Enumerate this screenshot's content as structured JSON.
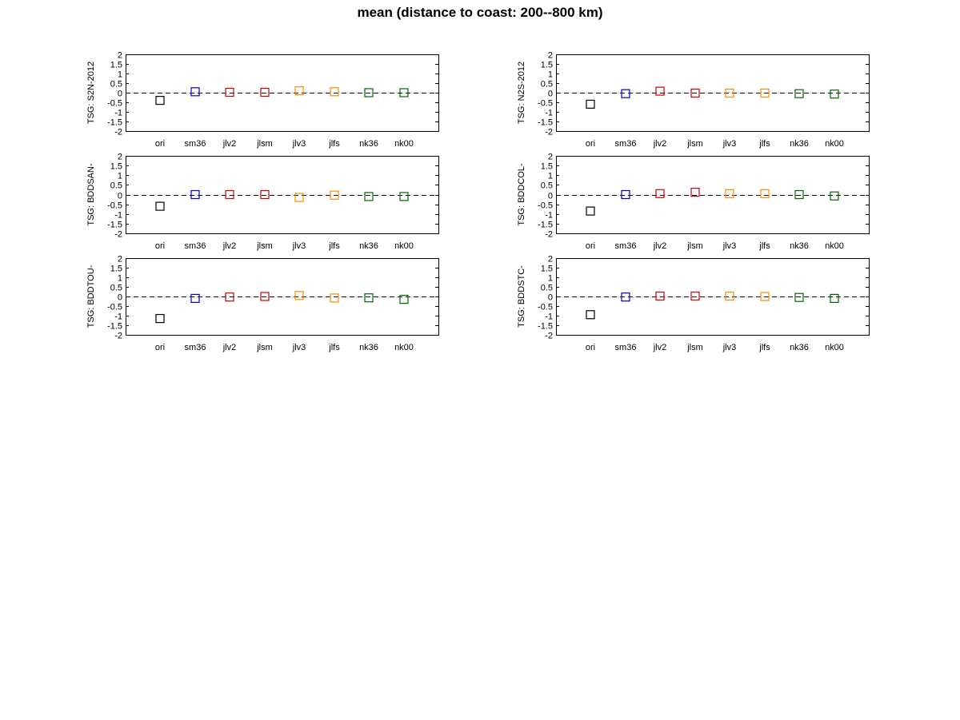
{
  "figure": {
    "title": "mean (distance to coast: 200--800 km)"
  },
  "colors": {
    "ori": "#000000",
    "sm36": "#0000cc",
    "jlv2": "#cc0000",
    "jlsm": "#cc0000",
    "jlv3": "#ff8800",
    "jlfs": "#ff8800",
    "nk36": "#006600",
    "nk00": "#006600",
    "zero_line": "#000000"
  },
  "chart_data": [
    {
      "type": "scatter",
      "ylabel": "TSG: S2N-2012",
      "categories": [
        "ori",
        "sm36",
        "jlv2",
        "jlsm",
        "jlv3",
        "jlfs",
        "nk36",
        "nk00"
      ],
      "values": [
        -0.4,
        0.05,
        0.02,
        0.02,
        0.1,
        0.05,
        0.0,
        0.0
      ],
      "ylim": [
        -2,
        2
      ],
      "yticks": [
        "2",
        "1.5",
        "1",
        "0.5",
        "0",
        "-0.5",
        "-1",
        "-1.5",
        "-2"
      ],
      "zero_line": "dashed"
    },
    {
      "type": "scatter",
      "ylabel": "TSG: N2S-2012",
      "categories": [
        "ori",
        "sm36",
        "jlv2",
        "jlsm",
        "jlv3",
        "jlfs",
        "nk36",
        "nk00"
      ],
      "values": [
        -0.6,
        -0.05,
        0.08,
        -0.02,
        -0.02,
        -0.02,
        -0.05,
        -0.07
      ],
      "ylim": [
        -2,
        2
      ],
      "yticks": [
        "2",
        "1.5",
        "1",
        "0.5",
        "0",
        "-0.5",
        "-1",
        "-1.5",
        "-2"
      ],
      "zero_line": "dashed"
    },
    {
      "type": "scatter",
      "ylabel": "TSG: BDDSAN-",
      "categories": [
        "ori",
        "sm36",
        "jlv2",
        "jlsm",
        "jlv3",
        "jlfs",
        "nk36",
        "nk00"
      ],
      "values": [
        -0.6,
        0.0,
        0.0,
        0.0,
        -0.15,
        -0.03,
        -0.1,
        -0.1
      ],
      "ylim": [
        -2,
        2
      ],
      "yticks": [
        "2",
        "1.5",
        "1",
        "0.5",
        "0",
        "-0.5",
        "-1",
        "-1.5",
        "-2"
      ],
      "zero_line": "dashed"
    },
    {
      "type": "scatter",
      "ylabel": "TSG: BDDCOL-",
      "categories": [
        "ori",
        "sm36",
        "jlv2",
        "jlsm",
        "jlv3",
        "jlfs",
        "nk36",
        "nk00"
      ],
      "values": [
        -0.85,
        0.0,
        0.05,
        0.12,
        0.05,
        0.05,
        0.0,
        -0.07
      ],
      "ylim": [
        -2,
        2
      ],
      "yticks": [
        "2",
        "1.5",
        "1",
        "0.5",
        "0",
        "-0.5",
        "-1",
        "-1.5",
        "-2"
      ],
      "zero_line": "dashed"
    },
    {
      "type": "scatter",
      "ylabel": "TSG: BDDTOU-",
      "categories": [
        "ori",
        "sm36",
        "jlv2",
        "jlsm",
        "jlv3",
        "jlfs",
        "nk36",
        "nk00"
      ],
      "values": [
        -1.15,
        -0.1,
        -0.03,
        0.0,
        0.05,
        -0.08,
        -0.07,
        -0.15
      ],
      "ylim": [
        -2,
        2
      ],
      "yticks": [
        "2",
        "1.5",
        "1",
        "0.5",
        "0",
        "-0.5",
        "-1",
        "-1.5",
        "-2"
      ],
      "zero_line": "dashed"
    },
    {
      "type": "scatter",
      "ylabel": "TSG: BDDSTC-",
      "categories": [
        "ori",
        "sm36",
        "jlv2",
        "jlsm",
        "jlv3",
        "jlfs",
        "nk36",
        "nk00"
      ],
      "values": [
        -0.95,
        -0.03,
        0.02,
        0.02,
        0.02,
        0.0,
        -0.05,
        -0.1
      ],
      "ylim": [
        -2,
        2
      ],
      "yticks": [
        "2",
        "1.5",
        "1",
        "0.5",
        "0",
        "-0.5",
        "-1",
        "-1.5",
        "-2"
      ],
      "zero_line": "dashed"
    }
  ]
}
